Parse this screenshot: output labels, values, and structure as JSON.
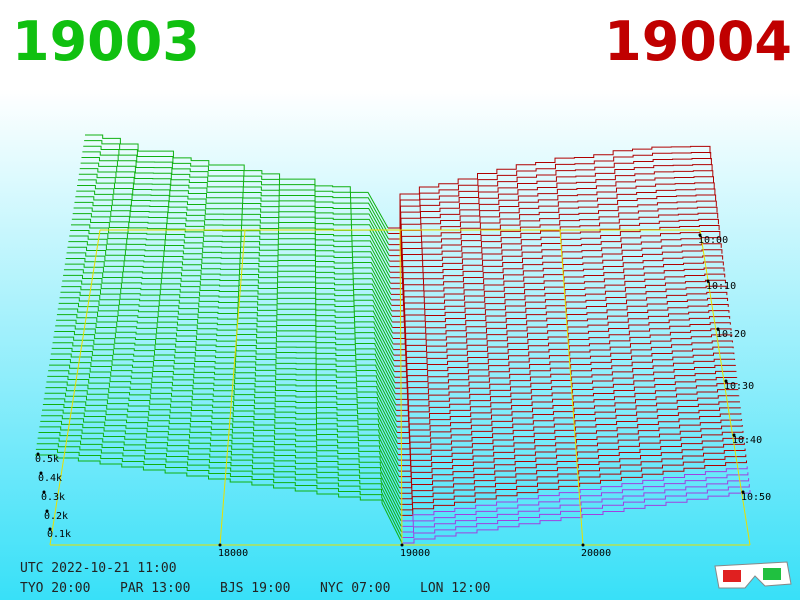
{
  "header": {
    "left_symbol": "19003",
    "right_symbol": "19004"
  },
  "axes": {
    "depth_labels": [
      "0.5k",
      "0.4k",
      "0.3k",
      "0.2k",
      "0.1k"
    ],
    "price_labels": [
      "18000",
      "19000",
      "20000"
    ],
    "time_labels": [
      "10:00",
      "10:10",
      "10:20",
      "10:30",
      "10:40",
      "10:50"
    ]
  },
  "footer": {
    "utc": "UTC 2022-10-21 11:00",
    "clocks": [
      "TYO 20:00",
      "PAR 13:00",
      "BJS 19:00",
      "NYC 07:00",
      "LON 12:00"
    ]
  }
}
